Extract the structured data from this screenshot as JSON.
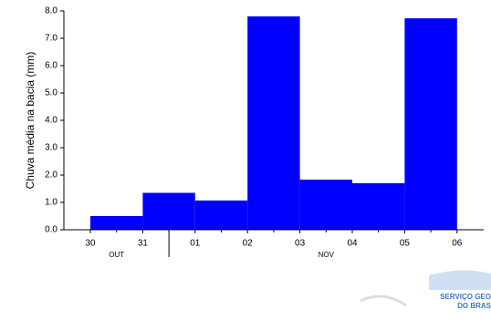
{
  "chart_data": {
    "type": "histogram",
    "y_label": "Chuva média na bacia (mm)",
    "bins": [
      "30",
      "31",
      "01",
      "02",
      "03",
      "04",
      "05",
      "06"
    ],
    "values": [
      0.5,
      1.35,
      1.07,
      7.8,
      1.83,
      1.7,
      7.73
    ],
    "color": "#0000ff",
    "month_labels": [
      "OUT",
      "NOV"
    ],
    "ylim": [
      0,
      8
    ],
    "yticks": [
      {
        "value": 0,
        "label": "0.0"
      },
      {
        "value": 1,
        "label": "1.0"
      },
      {
        "value": 2,
        "label": "2.0"
      },
      {
        "value": 3,
        "label": "3.0"
      },
      {
        "value": 4,
        "label": "4.0"
      },
      {
        "value": 5,
        "label": "5.0"
      },
      {
        "value": 6,
        "label": "6.0"
      },
      {
        "value": 7,
        "label": "7.0"
      },
      {
        "value": 8,
        "label": "8.0"
      }
    ],
    "grid": false
  },
  "logo": {
    "line1": "SERVIÇO GEO",
    "line2": "DO BRAS"
  }
}
